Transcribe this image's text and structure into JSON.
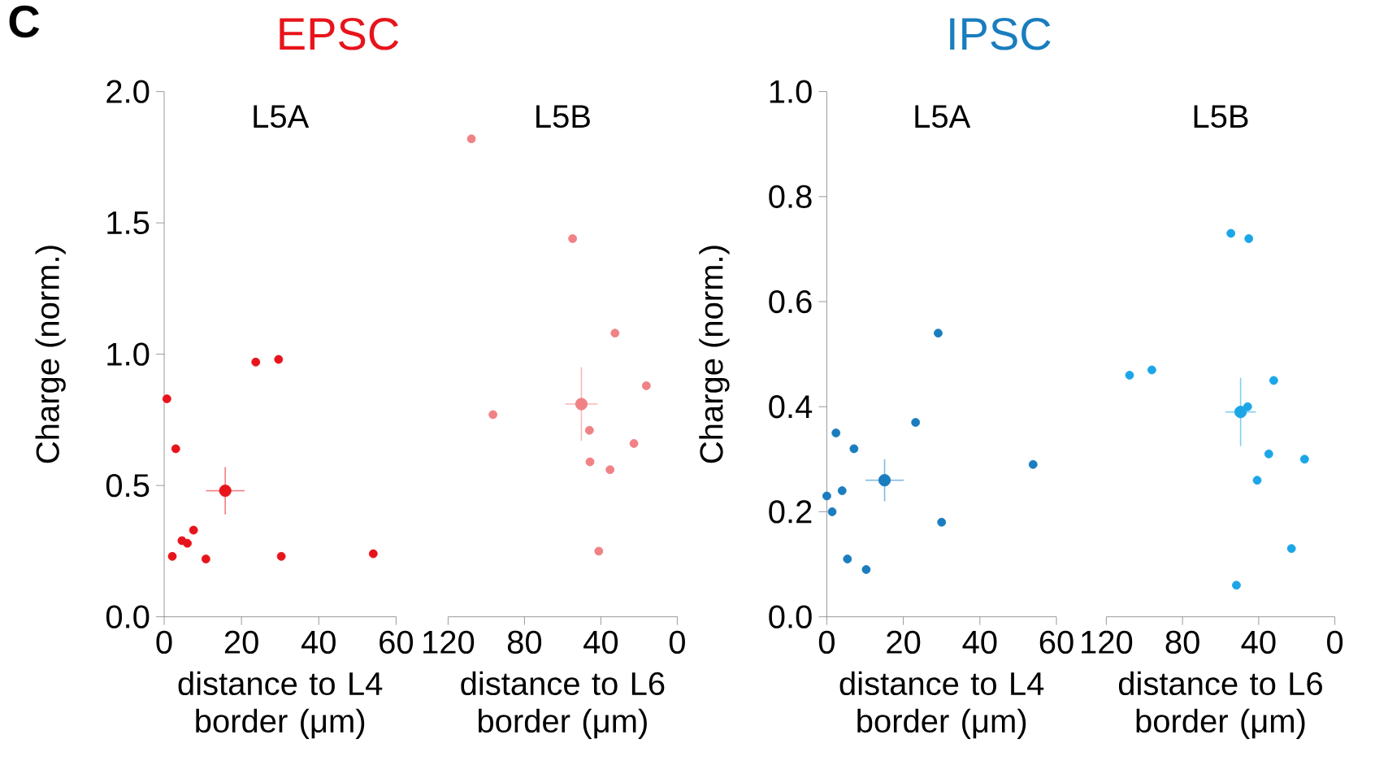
{
  "chart_data": [
    {
      "type": "scatter",
      "title": "EPSC",
      "subtitle": "L5A",
      "annotations": [
        "C"
      ],
      "xlabel": "distance to L4 border (μm)",
      "ylabel": "Charge (norm.)",
      "xlim": [
        0,
        60
      ],
      "xticks": [
        0,
        20,
        40,
        60
      ],
      "ylim": [
        0,
        2.0
      ],
      "yticks": [
        {
          "value": 0,
          "label": "0.0"
        },
        {
          "value": 0.5,
          "label": "0.5"
        },
        {
          "value": 1.0,
          "label": "1.0"
        },
        {
          "value": 1.5,
          "label": "1.5"
        },
        {
          "value": 2.0,
          "label": "2.0"
        }
      ],
      "marker": "circle",
      "series": [
        {
          "color": "#e8141b",
          "x": [
            0.7,
            3.0,
            2.1,
            4.6,
            6.0,
            7.6,
            10.8,
            23.7,
            29.6,
            30.3,
            54.1
          ],
          "values": [
            0.83,
            0.64,
            0.23,
            0.29,
            0.28,
            0.33,
            0.22,
            0.97,
            0.98,
            0.23,
            0.24
          ]
        },
        {
          "color": "#e8141b",
          "x": [
            15.8
          ],
          "values": [
            0.48
          ],
          "errors": [
            0.09
          ],
          "xerrors": [
            5
          ]
        }
      ]
    },
    {
      "type": "scatter",
      "subtitle": "L5B",
      "xlabel": "distance to L6 border (μm)",
      "xlim": [
        120,
        0
      ],
      "xticks": [
        120,
        80,
        40,
        0
      ],
      "ylim": [
        0,
        2.0
      ],
      "tick_labels": "x",
      "marker": "circle",
      "series": [
        {
          "color": "#f08286",
          "x": [
            107.8,
            54.8,
            32.6,
            16.2,
            96.5,
            46.0,
            22.7,
            45.7,
            35.2,
            41.1
          ],
          "values": [
            1.82,
            1.44,
            1.08,
            0.88,
            0.77,
            0.71,
            0.66,
            0.59,
            0.56,
            0.25
          ]
        },
        {
          "color": "#f08286",
          "x": [
            50.2
          ],
          "values": [
            0.81
          ],
          "errors": [
            0.14
          ],
          "xerrors": [
            8.5
          ]
        }
      ]
    },
    {
      "type": "scatter",
      "title": "IPSC",
      "subtitle": "L5A",
      "xlabel": "distance to L4 border (μm)",
      "ylabel": "Charge (norm.)",
      "xlim": [
        0,
        60
      ],
      "xticks": [
        0,
        20,
        40,
        60
      ],
      "ylim": [
        0,
        1.0
      ],
      "yticks": [
        {
          "value": 0,
          "label": "0.0"
        },
        {
          "value": 0.2,
          "label": "0.2"
        },
        {
          "value": 0.4,
          "label": "0.4"
        },
        {
          "value": 0.6,
          "label": "0.6"
        },
        {
          "value": 0.8,
          "label": "0.8"
        },
        {
          "value": 1.0,
          "label": "1.0"
        }
      ],
      "marker": "circle",
      "series": [
        {
          "color": "#1a7dbf",
          "x": [
            0,
            1.4,
            2.4,
            4.0,
            7.1,
            5.4,
            10.3,
            23.2,
            29.1,
            30.0,
            53.9
          ],
          "values": [
            0.23,
            0.2,
            0.35,
            0.24,
            0.32,
            0.11,
            0.09,
            0.37,
            0.54,
            0.18,
            0.29
          ]
        },
        {
          "color": "#1a7dbf",
          "x": [
            15.1
          ],
          "values": [
            0.26
          ],
          "errors": [
            0.04
          ],
          "xerrors": [
            5
          ]
        }
      ]
    },
    {
      "type": "scatter",
      "subtitle": "L5B",
      "xlabel": "distance to L6 border (μm)",
      "xlim": [
        120,
        0
      ],
      "xticks": [
        120,
        80,
        40,
        0
      ],
      "ylim": [
        0,
        1.0
      ],
      "tick_labels": "x",
      "marker": "circle",
      "series": [
        {
          "color": "#1ca6e8",
          "x": [
            54.6,
            45.2,
            107.8,
            96.1,
            32.1,
            45.8,
            34.7,
            15.9,
            40.8,
            22.8,
            51.7
          ],
          "values": [
            0.73,
            0.72,
            0.46,
            0.47,
            0.45,
            0.4,
            0.31,
            0.3,
            0.26,
            0.13,
            0.06
          ]
        },
        {
          "color": "#1ca6e8",
          "x": [
            49.5
          ],
          "values": [
            0.39
          ],
          "errors": [
            0.065
          ],
          "xerrors": [
            8
          ]
        }
      ]
    }
  ]
}
